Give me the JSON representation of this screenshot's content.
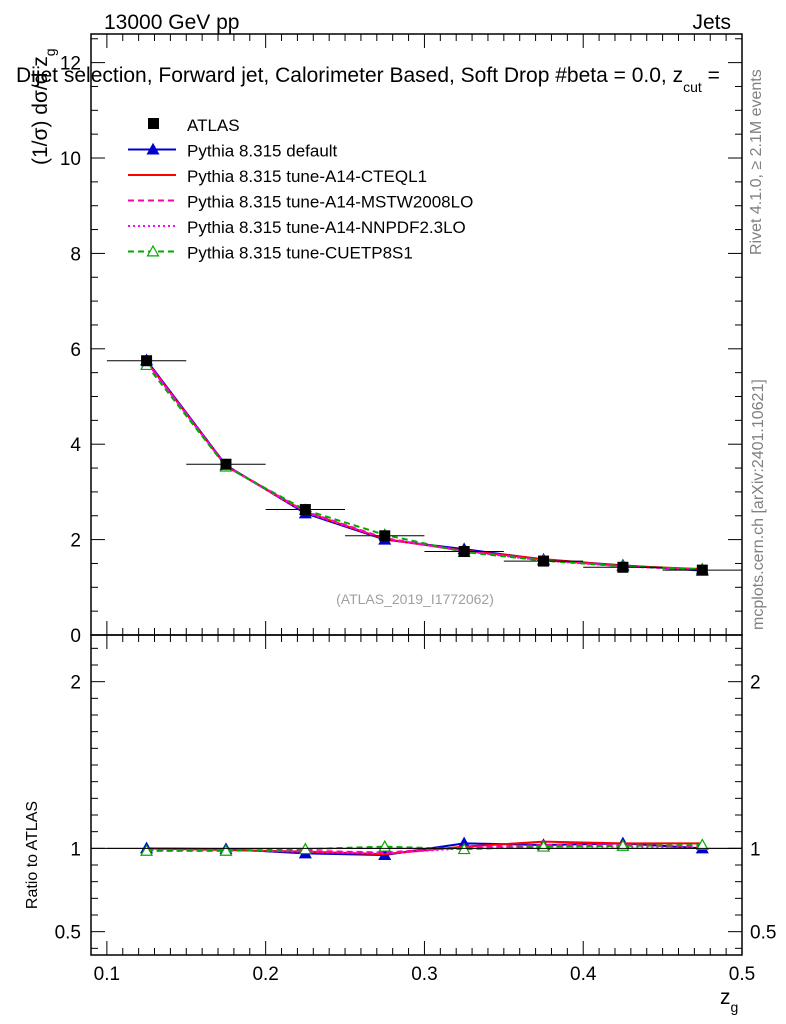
{
  "header": {
    "energy": "13000 GeV pp",
    "process": "Jets",
    "selection": "Dijet selection, Forward jet, Calorimeter Based, Soft Drop #b",
    "selection_tail": "eta = 0.0, z",
    "selection_sub": "cut",
    "selection_end": " ="
  },
  "side": {
    "rivet": "Rivet 4.1.0, ≥ 2.1M events",
    "mcplots": "mcplots.cern.ch [arXiv:2401.10621]"
  },
  "watermark": "(ATLAS_2019_I1772062)",
  "labels": {
    "ylabel_main": "(1/σ) dσ/d z",
    "ylabel_main_sub": "g",
    "ylabel_ratio": "Ratio to ATLAS",
    "xlabel": "z",
    "xlabel_sub": "g"
  },
  "chart_data": {
    "type": "line",
    "x": [
      0.125,
      0.175,
      0.225,
      0.275,
      0.325,
      0.375,
      0.425,
      0.475
    ],
    "xlim": [
      0.09,
      0.5
    ],
    "ylim": [
      0,
      12.6
    ],
    "ratio_ylim": [
      0.36,
      2.28
    ],
    "xticks": [
      0.1,
      0.2,
      0.3,
      0.4,
      0.5
    ],
    "xtick_labels": [
      "0.1",
      "0.2",
      "0.3",
      "0.4",
      "0.5"
    ],
    "yticks": [
      0,
      2,
      4,
      6,
      8,
      10,
      12
    ],
    "ytick_labels": [
      "0",
      "2",
      "4",
      "6",
      "8",
      "10",
      "12"
    ],
    "ratio_yticks": [
      0.5,
      1,
      2
    ],
    "ratio_ytick_labels": [
      "0.5",
      "1",
      "2"
    ],
    "series": [
      {
        "name": "ATLAS",
        "color": "#000000",
        "style": "data",
        "values": [
          5.75,
          3.58,
          2.63,
          2.08,
          1.75,
          1.55,
          1.42,
          1.36
        ],
        "ratio": [
          1,
          1,
          1,
          1,
          1,
          1,
          1,
          1
        ]
      },
      {
        "name": "Pythia 8.315 default",
        "color": "#0000cc",
        "style": "solid-triangle",
        "values": [
          5.76,
          3.56,
          2.55,
          2.0,
          1.8,
          1.58,
          1.46,
          1.35
        ],
        "ratio": [
          1.0,
          0.995,
          0.97,
          0.96,
          1.03,
          1.02,
          1.03,
          1.0
        ]
      },
      {
        "name": "Pythia 8.315 tune-A14-CTEQL1",
        "color": "#ff0000",
        "style": "solid",
        "values": [
          5.74,
          3.54,
          2.58,
          2.01,
          1.77,
          1.59,
          1.45,
          1.38
        ],
        "ratio": [
          1.0,
          0.99,
          0.98,
          0.965,
          1.01,
          1.04,
          1.03,
          1.03
        ]
      },
      {
        "name": "Pythia 8.315 tune-A14-MSTW2008LO",
        "color": "#ff00aa",
        "style": "dashed",
        "values": [
          5.73,
          3.55,
          2.59,
          2.03,
          1.76,
          1.57,
          1.44,
          1.37
        ],
        "ratio": [
          0.995,
          0.99,
          0.985,
          0.975,
          1.005,
          1.02,
          1.02,
          1.01
        ]
      },
      {
        "name": "Pythia 8.315 tune-A14-NNPDF2.3LO",
        "color": "#ff00ff",
        "style": "dotted",
        "values": [
          5.72,
          3.54,
          2.57,
          2.02,
          1.76,
          1.56,
          1.44,
          1.36
        ],
        "ratio": [
          0.99,
          0.988,
          0.98,
          0.97,
          1.0,
          1.01,
          1.01,
          1.0
        ]
      },
      {
        "name": "Pythia 8.315 tune-CUETP8S1",
        "color": "#00aa00",
        "style": "dashed-triangle",
        "values": [
          5.66,
          3.53,
          2.62,
          2.1,
          1.74,
          1.56,
          1.44,
          1.38
        ],
        "ratio": [
          0.985,
          0.985,
          0.995,
          1.01,
          0.995,
          1.01,
          1.015,
          1.02
        ]
      }
    ]
  }
}
